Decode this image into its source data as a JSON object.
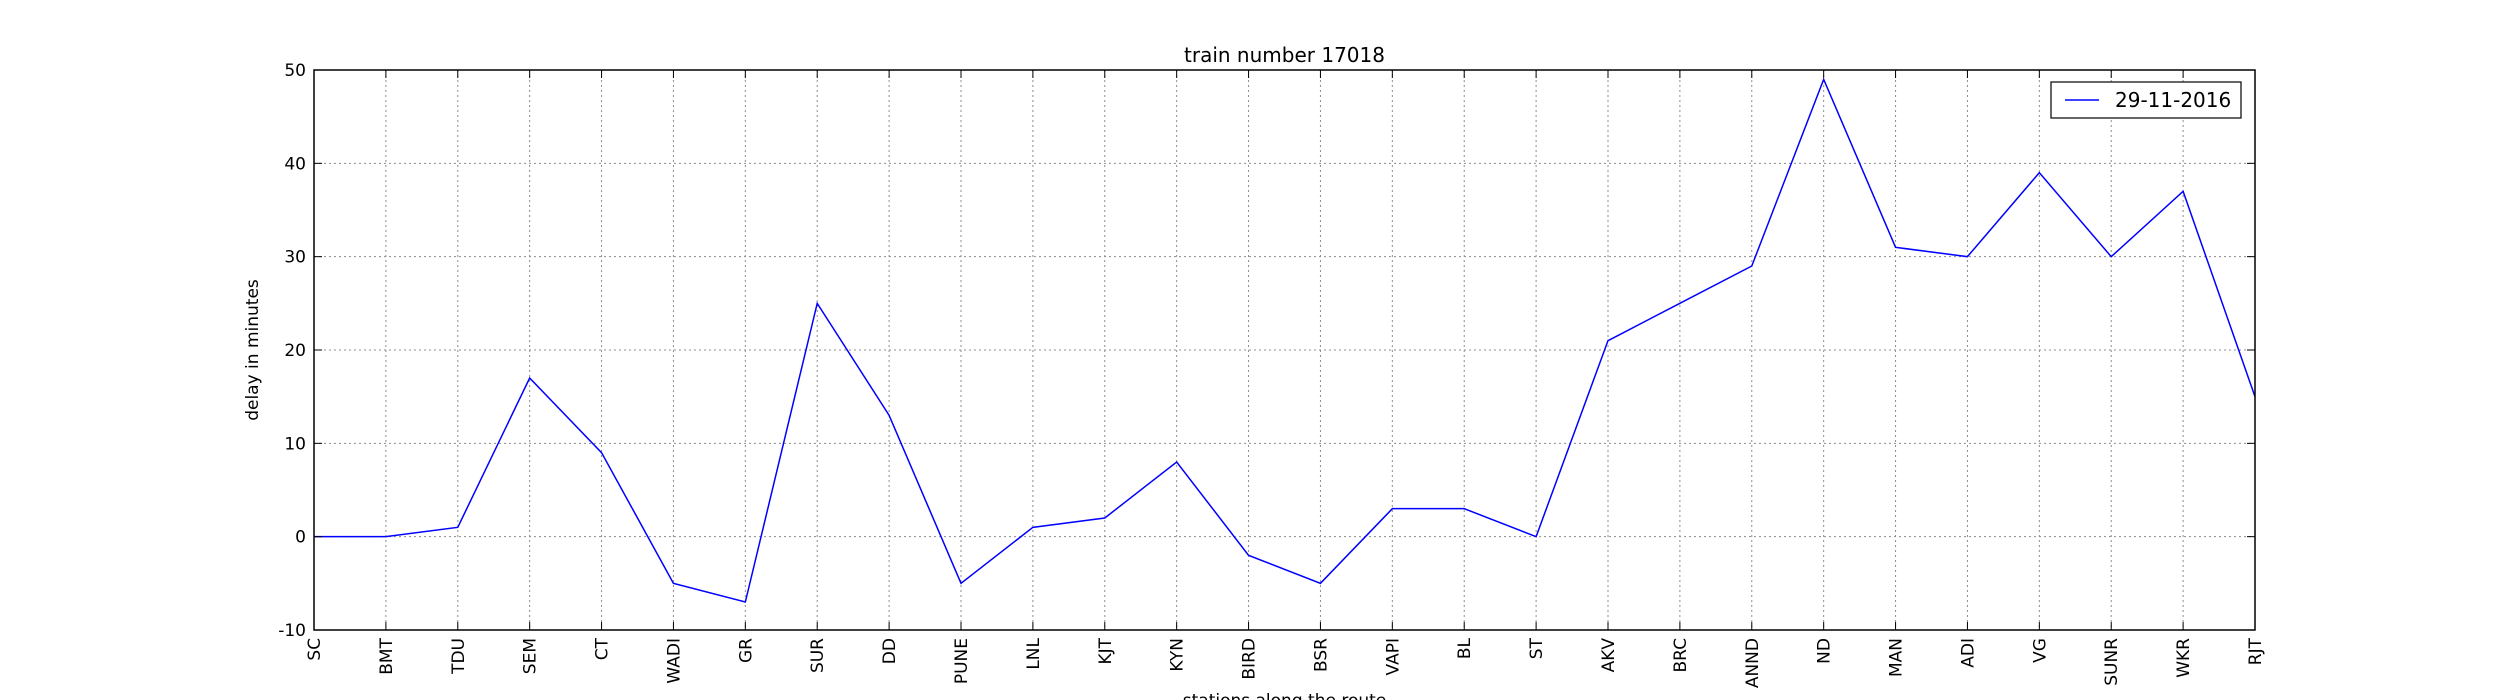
{
  "chart_data": {
    "type": "line",
    "title": "train number 17018",
    "xlabel": "stations along the route",
    "ylabel": "delay in minutes",
    "ylim": [
      -10,
      50
    ],
    "yticks": [
      -10,
      0,
      10,
      20,
      30,
      40,
      50
    ],
    "grid": true,
    "legend_position": "top-right",
    "categories": [
      "SC",
      "BMT",
      "TDU",
      "SEM",
      "CT",
      "WADI",
      "GR",
      "SUR",
      "DD",
      "PUNE",
      "LNL",
      "KJT",
      "KYN",
      "BIRD",
      "BSR",
      "VAPI",
      "BL",
      "ST",
      "AKV",
      "BRC",
      "ANND",
      "ND",
      "MAN",
      "ADI",
      "VG",
      "SUNR",
      "WKR",
      "RJT"
    ],
    "series": [
      {
        "name": "29-11-2016",
        "color": "#0000ff",
        "values": [
          0,
          0,
          1,
          17,
          9,
          -5,
          -7,
          25,
          13,
          -5,
          1,
          2,
          8,
          -2,
          -5,
          3,
          3,
          0,
          21,
          25,
          29,
          49,
          31,
          30,
          39,
          30,
          37,
          15
        ]
      }
    ]
  }
}
